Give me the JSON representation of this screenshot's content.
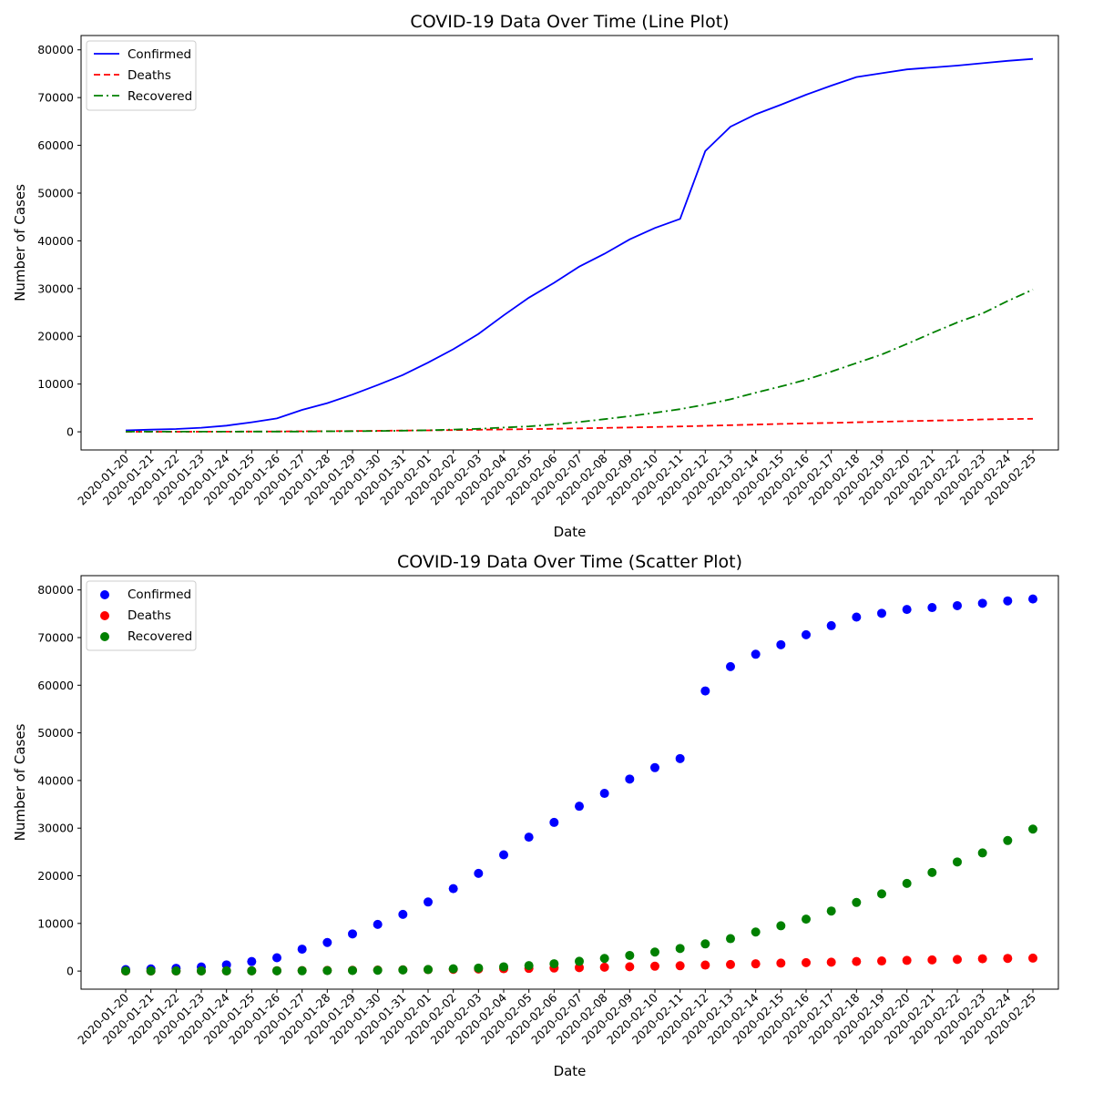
{
  "chart_data": [
    {
      "type": "line",
      "title": "COVID-19 Data Over Time (Line Plot)",
      "xlabel": "Date",
      "ylabel": "Number of Cases",
      "ylim": [
        -3800,
        83000
      ],
      "yticks": [
        0,
        10000,
        20000,
        30000,
        40000,
        50000,
        60000,
        70000,
        80000
      ],
      "grid": false,
      "legend_position": "upper-left",
      "x": [
        "2020-01-20",
        "2020-01-21",
        "2020-01-22",
        "2020-01-23",
        "2020-01-24",
        "2020-01-25",
        "2020-01-26",
        "2020-01-27",
        "2020-01-28",
        "2020-01-29",
        "2020-01-30",
        "2020-01-31",
        "2020-02-01",
        "2020-02-02",
        "2020-02-03",
        "2020-02-04",
        "2020-02-05",
        "2020-02-06",
        "2020-02-07",
        "2020-02-08",
        "2020-02-09",
        "2020-02-10",
        "2020-02-11",
        "2020-02-12",
        "2020-02-13",
        "2020-02-14",
        "2020-02-15",
        "2020-02-16",
        "2020-02-17",
        "2020-02-18",
        "2020-02-19",
        "2020-02-20",
        "2020-02-21",
        "2020-02-22",
        "2020-02-23",
        "2020-02-24",
        "2020-02-25"
      ],
      "series": [
        {
          "name": "Confirmed",
          "color": "#0000ff",
          "style": "solid",
          "values": [
            300,
            450,
            580,
            850,
            1300,
            2000,
            2800,
            4600,
            6000,
            7800,
            9800,
            11900,
            14500,
            17300,
            20500,
            24400,
            28100,
            31200,
            34600,
            37300,
            40300,
            42700,
            44600,
            58800,
            63900,
            66500,
            68500,
            70600,
            72500,
            74300,
            75100,
            75900,
            76300,
            76700,
            77200,
            77700,
            78100
          ]
        },
        {
          "name": "Deaths",
          "color": "#ff0000",
          "style": "dashed",
          "values": [
            6,
            9,
            17,
            25,
            41,
            56,
            80,
            106,
            132,
            170,
            213,
            259,
            304,
            362,
            426,
            490,
            563,
            636,
            722,
            811,
            908,
            1016,
            1113,
            1259,
            1380,
            1523,
            1665,
            1770,
            1868,
            2004,
            2118,
            2236,
            2345,
            2442,
            2592,
            2663,
            2715
          ]
        },
        {
          "name": "Recovered",
          "color": "#008000",
          "style": "dashdot",
          "values": [
            25,
            28,
            28,
            34,
            39,
            49,
            56,
            63,
            107,
            126,
            171,
            243,
            328,
            475,
            630,
            892,
            1150,
            1540,
            2050,
            2650,
            3280,
            3990,
            4740,
            5700,
            6800,
            8200,
            9500,
            10900,
            12600,
            14400,
            16200,
            18400,
            20700,
            22900,
            24800,
            27400,
            29800
          ]
        }
      ]
    },
    {
      "type": "scatter",
      "title": "COVID-19 Data Over Time (Scatter Plot)",
      "xlabel": "Date",
      "ylabel": "Number of Cases",
      "ylim": [
        -3800,
        83000
      ],
      "yticks": [
        0,
        10000,
        20000,
        30000,
        40000,
        50000,
        60000,
        70000,
        80000
      ],
      "grid": false,
      "legend_position": "upper-left",
      "x": [
        "2020-01-20",
        "2020-01-21",
        "2020-01-22",
        "2020-01-23",
        "2020-01-24",
        "2020-01-25",
        "2020-01-26",
        "2020-01-27",
        "2020-01-28",
        "2020-01-29",
        "2020-01-30",
        "2020-01-31",
        "2020-02-01",
        "2020-02-02",
        "2020-02-03",
        "2020-02-04",
        "2020-02-05",
        "2020-02-06",
        "2020-02-07",
        "2020-02-08",
        "2020-02-09",
        "2020-02-10",
        "2020-02-11",
        "2020-02-12",
        "2020-02-13",
        "2020-02-14",
        "2020-02-15",
        "2020-02-16",
        "2020-02-17",
        "2020-02-18",
        "2020-02-19",
        "2020-02-20",
        "2020-02-21",
        "2020-02-22",
        "2020-02-23",
        "2020-02-24",
        "2020-02-25"
      ],
      "series": [
        {
          "name": "Confirmed",
          "color": "#0000ff",
          "values": [
            300,
            450,
            580,
            850,
            1300,
            2000,
            2800,
            4600,
            6000,
            7800,
            9800,
            11900,
            14500,
            17300,
            20500,
            24400,
            28100,
            31200,
            34600,
            37300,
            40300,
            42700,
            44600,
            58800,
            63900,
            66500,
            68500,
            70600,
            72500,
            74300,
            75100,
            75900,
            76300,
            76700,
            77200,
            77700,
            78100
          ]
        },
        {
          "name": "Deaths",
          "color": "#ff0000",
          "values": [
            6,
            9,
            17,
            25,
            41,
            56,
            80,
            106,
            132,
            170,
            213,
            259,
            304,
            362,
            426,
            490,
            563,
            636,
            722,
            811,
            908,
            1016,
            1113,
            1259,
            1380,
            1523,
            1665,
            1770,
            1868,
            2004,
            2118,
            2236,
            2345,
            2442,
            2592,
            2663,
            2715
          ]
        },
        {
          "name": "Recovered",
          "color": "#008000",
          "values": [
            25,
            28,
            28,
            34,
            39,
            49,
            56,
            63,
            107,
            126,
            171,
            243,
            328,
            475,
            630,
            892,
            1150,
            1540,
            2050,
            2650,
            3280,
            3990,
            4740,
            5700,
            6800,
            8200,
            9500,
            10900,
            12600,
            14400,
            16200,
            18400,
            20700,
            22900,
            24800,
            27400,
            29800
          ]
        }
      ]
    }
  ]
}
